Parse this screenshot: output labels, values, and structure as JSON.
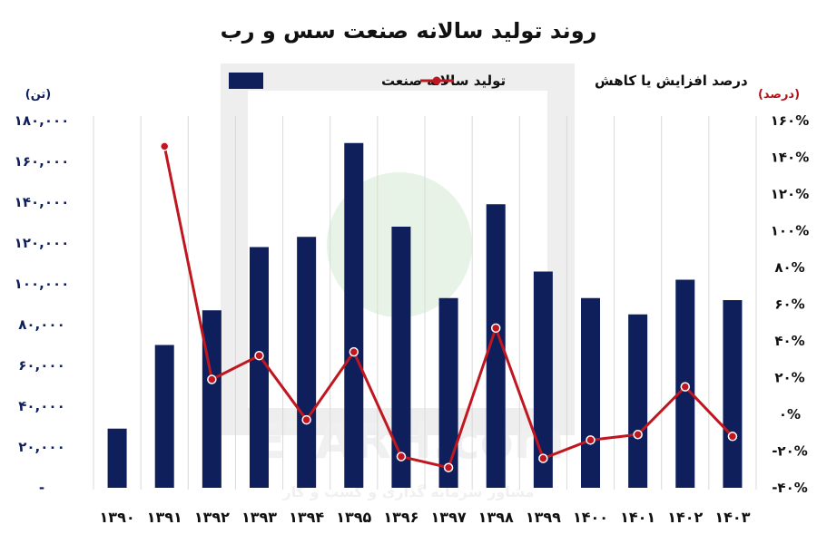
{
  "chart_data": {
    "type": "bar+line",
    "title": "روند تولید سالانه صنعت سس و رب",
    "left_unit": "(تن)",
    "right_unit": "(درصد)",
    "categories": [
      "۱۳۹۰",
      "۱۳۹۱",
      "۱۳۹۲",
      "۱۳۹۳",
      "۱۳۹۴",
      "۱۳۹۵",
      "۱۳۹۶",
      "۱۳۹۷",
      "۱۳۹۸",
      "۱۳۹۹",
      "۱۴۰۰",
      "۱۴۰۱",
      "۱۴۰۲",
      "۱۴۰۳"
    ],
    "left_axis": {
      "ylim": [
        0,
        180000
      ],
      "tick_values": [
        0,
        20000,
        40000,
        60000,
        80000,
        100000,
        120000,
        140000,
        160000,
        180000
      ],
      "tick_labels": [
        "-",
        "۲۰,۰۰۰",
        "۴۰,۰۰۰",
        "۶۰,۰۰۰",
        "۸۰,۰۰۰",
        "۱۰۰,۰۰۰",
        "۱۲۰,۰۰۰",
        "۱۴۰,۰۰۰",
        "۱۶۰,۰۰۰",
        "۱۸۰,۰۰۰"
      ]
    },
    "right_axis": {
      "ylim": [
        -40,
        160
      ],
      "tick_values": [
        -40,
        -20,
        0,
        20,
        40,
        60,
        80,
        100,
        120,
        140,
        160
      ],
      "tick_labels": [
        "-۴۰%",
        "-۲۰%",
        "۰%",
        "۲۰%",
        "۴۰%",
        "۶۰%",
        "۸۰%",
        "۱۰۰%",
        "۱۲۰%",
        "۱۴۰%",
        "۱۶۰%"
      ]
    },
    "grid": {
      "vertical": true,
      "horizontal": false
    },
    "legend_position": "top",
    "series": [
      {
        "name": "تولید سالانه صنعت",
        "type": "bar",
        "axis": "left",
        "color": "#0e1f5b",
        "values": [
          29000,
          70000,
          87000,
          118000,
          123000,
          169000,
          128000,
          93000,
          139000,
          106000,
          93000,
          85000,
          102000,
          92000
        ]
      },
      {
        "name": "درصد افزایش یا کاهش",
        "type": "line",
        "axis": "right",
        "color": "#c0161f",
        "values": [
          null,
          146,
          19,
          32,
          -3,
          34,
          -23,
          -29,
          47,
          -24,
          -14,
          -11,
          15,
          -12
        ]
      }
    ]
  },
  "watermark": {
    "brand": "ETARH.com",
    "tagline": "مشاور سرمایه گذاری و کسب و کار"
  }
}
